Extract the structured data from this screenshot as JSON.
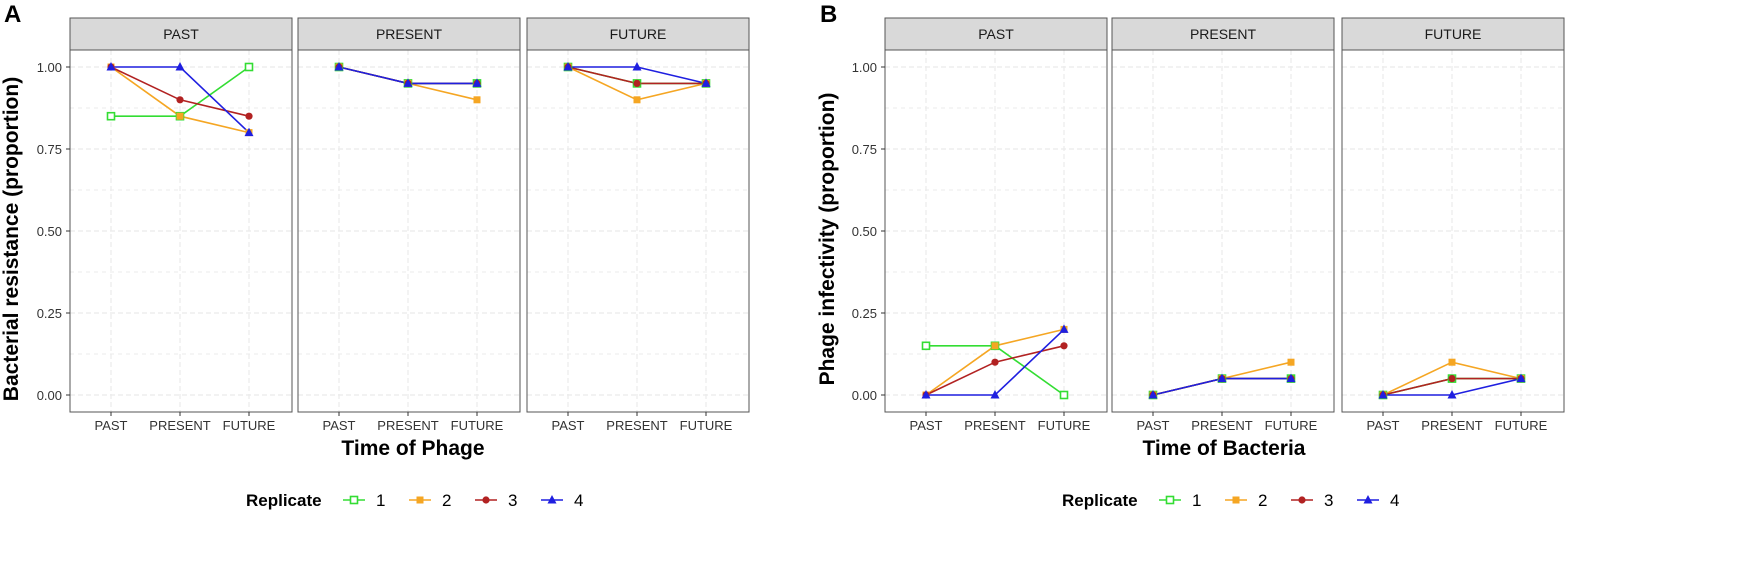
{
  "chart_data": [
    {
      "type": "line",
      "panel_label": "A",
      "ylabel": "Bacterial resistance (proportion)",
      "xlabel": "Time of Phage",
      "ylim": [
        0,
        1
      ],
      "y_ticks": [
        "0.00",
        "0.25",
        "0.50",
        "0.75",
        "1.00"
      ],
      "categories": [
        "PAST",
        "PRESENT",
        "FUTURE"
      ],
      "facets": [
        {
          "name": "PAST",
          "series": [
            {
              "replicate": "1",
              "values": [
                0.85,
                0.85,
                1.0
              ]
            },
            {
              "replicate": "2",
              "values": [
                1.0,
                0.85,
                0.8
              ]
            },
            {
              "replicate": "3",
              "values": [
                1.0,
                0.9,
                0.85
              ]
            },
            {
              "replicate": "4",
              "values": [
                1.0,
                1.0,
                0.8
              ]
            }
          ]
        },
        {
          "name": "PRESENT",
          "series": [
            {
              "replicate": "1",
              "values": [
                1.0,
                0.95,
                0.95
              ]
            },
            {
              "replicate": "2",
              "values": [
                1.0,
                0.95,
                0.9
              ]
            },
            {
              "replicate": "3",
              "values": [
                1.0,
                0.95,
                0.95
              ]
            },
            {
              "replicate": "4",
              "values": [
                1.0,
                0.95,
                0.95
              ]
            }
          ]
        },
        {
          "name": "FUTURE",
          "series": [
            {
              "replicate": "1",
              "values": [
                1.0,
                0.95,
                0.95
              ]
            },
            {
              "replicate": "2",
              "values": [
                1.0,
                0.9,
                0.95
              ]
            },
            {
              "replicate": "3",
              "values": [
                1.0,
                0.95,
                0.95
              ]
            },
            {
              "replicate": "4",
              "values": [
                1.0,
                1.0,
                0.95
              ]
            }
          ]
        }
      ],
      "legend": {
        "title": "Replicate",
        "entries": [
          "1",
          "2",
          "3",
          "4"
        ],
        "position": "bottom"
      }
    },
    {
      "type": "line",
      "panel_label": "B",
      "ylabel": "Phage infectivity (proportion)",
      "xlabel": "Time of Bacteria",
      "ylim": [
        0,
        1
      ],
      "y_ticks": [
        "0.00",
        "0.25",
        "0.50",
        "0.75",
        "1.00"
      ],
      "categories": [
        "PAST",
        "PRESENT",
        "FUTURE"
      ],
      "facets": [
        {
          "name": "PAST",
          "series": [
            {
              "replicate": "1",
              "values": [
                0.15,
                0.15,
                0.0
              ]
            },
            {
              "replicate": "2",
              "values": [
                0.0,
                0.15,
                0.2
              ]
            },
            {
              "replicate": "3",
              "values": [
                0.0,
                0.1,
                0.15
              ]
            },
            {
              "replicate": "4",
              "values": [
                0.0,
                0.0,
                0.2
              ]
            }
          ]
        },
        {
          "name": "PRESENT",
          "series": [
            {
              "replicate": "1",
              "values": [
                0.0,
                0.05,
                0.05
              ]
            },
            {
              "replicate": "2",
              "values": [
                0.0,
                0.05,
                0.1
              ]
            },
            {
              "replicate": "3",
              "values": [
                0.0,
                0.05,
                0.05
              ]
            },
            {
              "replicate": "4",
              "values": [
                0.0,
                0.05,
                0.05
              ]
            }
          ]
        },
        {
          "name": "FUTURE",
          "series": [
            {
              "replicate": "1",
              "values": [
                0.0,
                0.05,
                0.05
              ]
            },
            {
              "replicate": "2",
              "values": [
                0.0,
                0.1,
                0.05
              ]
            },
            {
              "replicate": "3",
              "values": [
                0.0,
                0.05,
                0.05
              ]
            },
            {
              "replicate": "4",
              "values": [
                0.0,
                0.0,
                0.05
              ]
            }
          ]
        }
      ],
      "legend": {
        "title": "Replicate",
        "entries": [
          "1",
          "2",
          "3",
          "4"
        ],
        "position": "bottom"
      }
    }
  ],
  "colors": {
    "replicate_1": "#33dd33",
    "replicate_2": "#f5a623",
    "replicate_3": "#b22222",
    "replicate_4": "#1f1fe0",
    "panel_bg": "#ffffff",
    "strip_bg": "#d9d9d9",
    "grid": "#ebebeb",
    "border": "#555555"
  },
  "markers": {
    "replicate_1": "square-open",
    "replicate_2": "square",
    "replicate_3": "circle",
    "replicate_4": "triangle"
  }
}
